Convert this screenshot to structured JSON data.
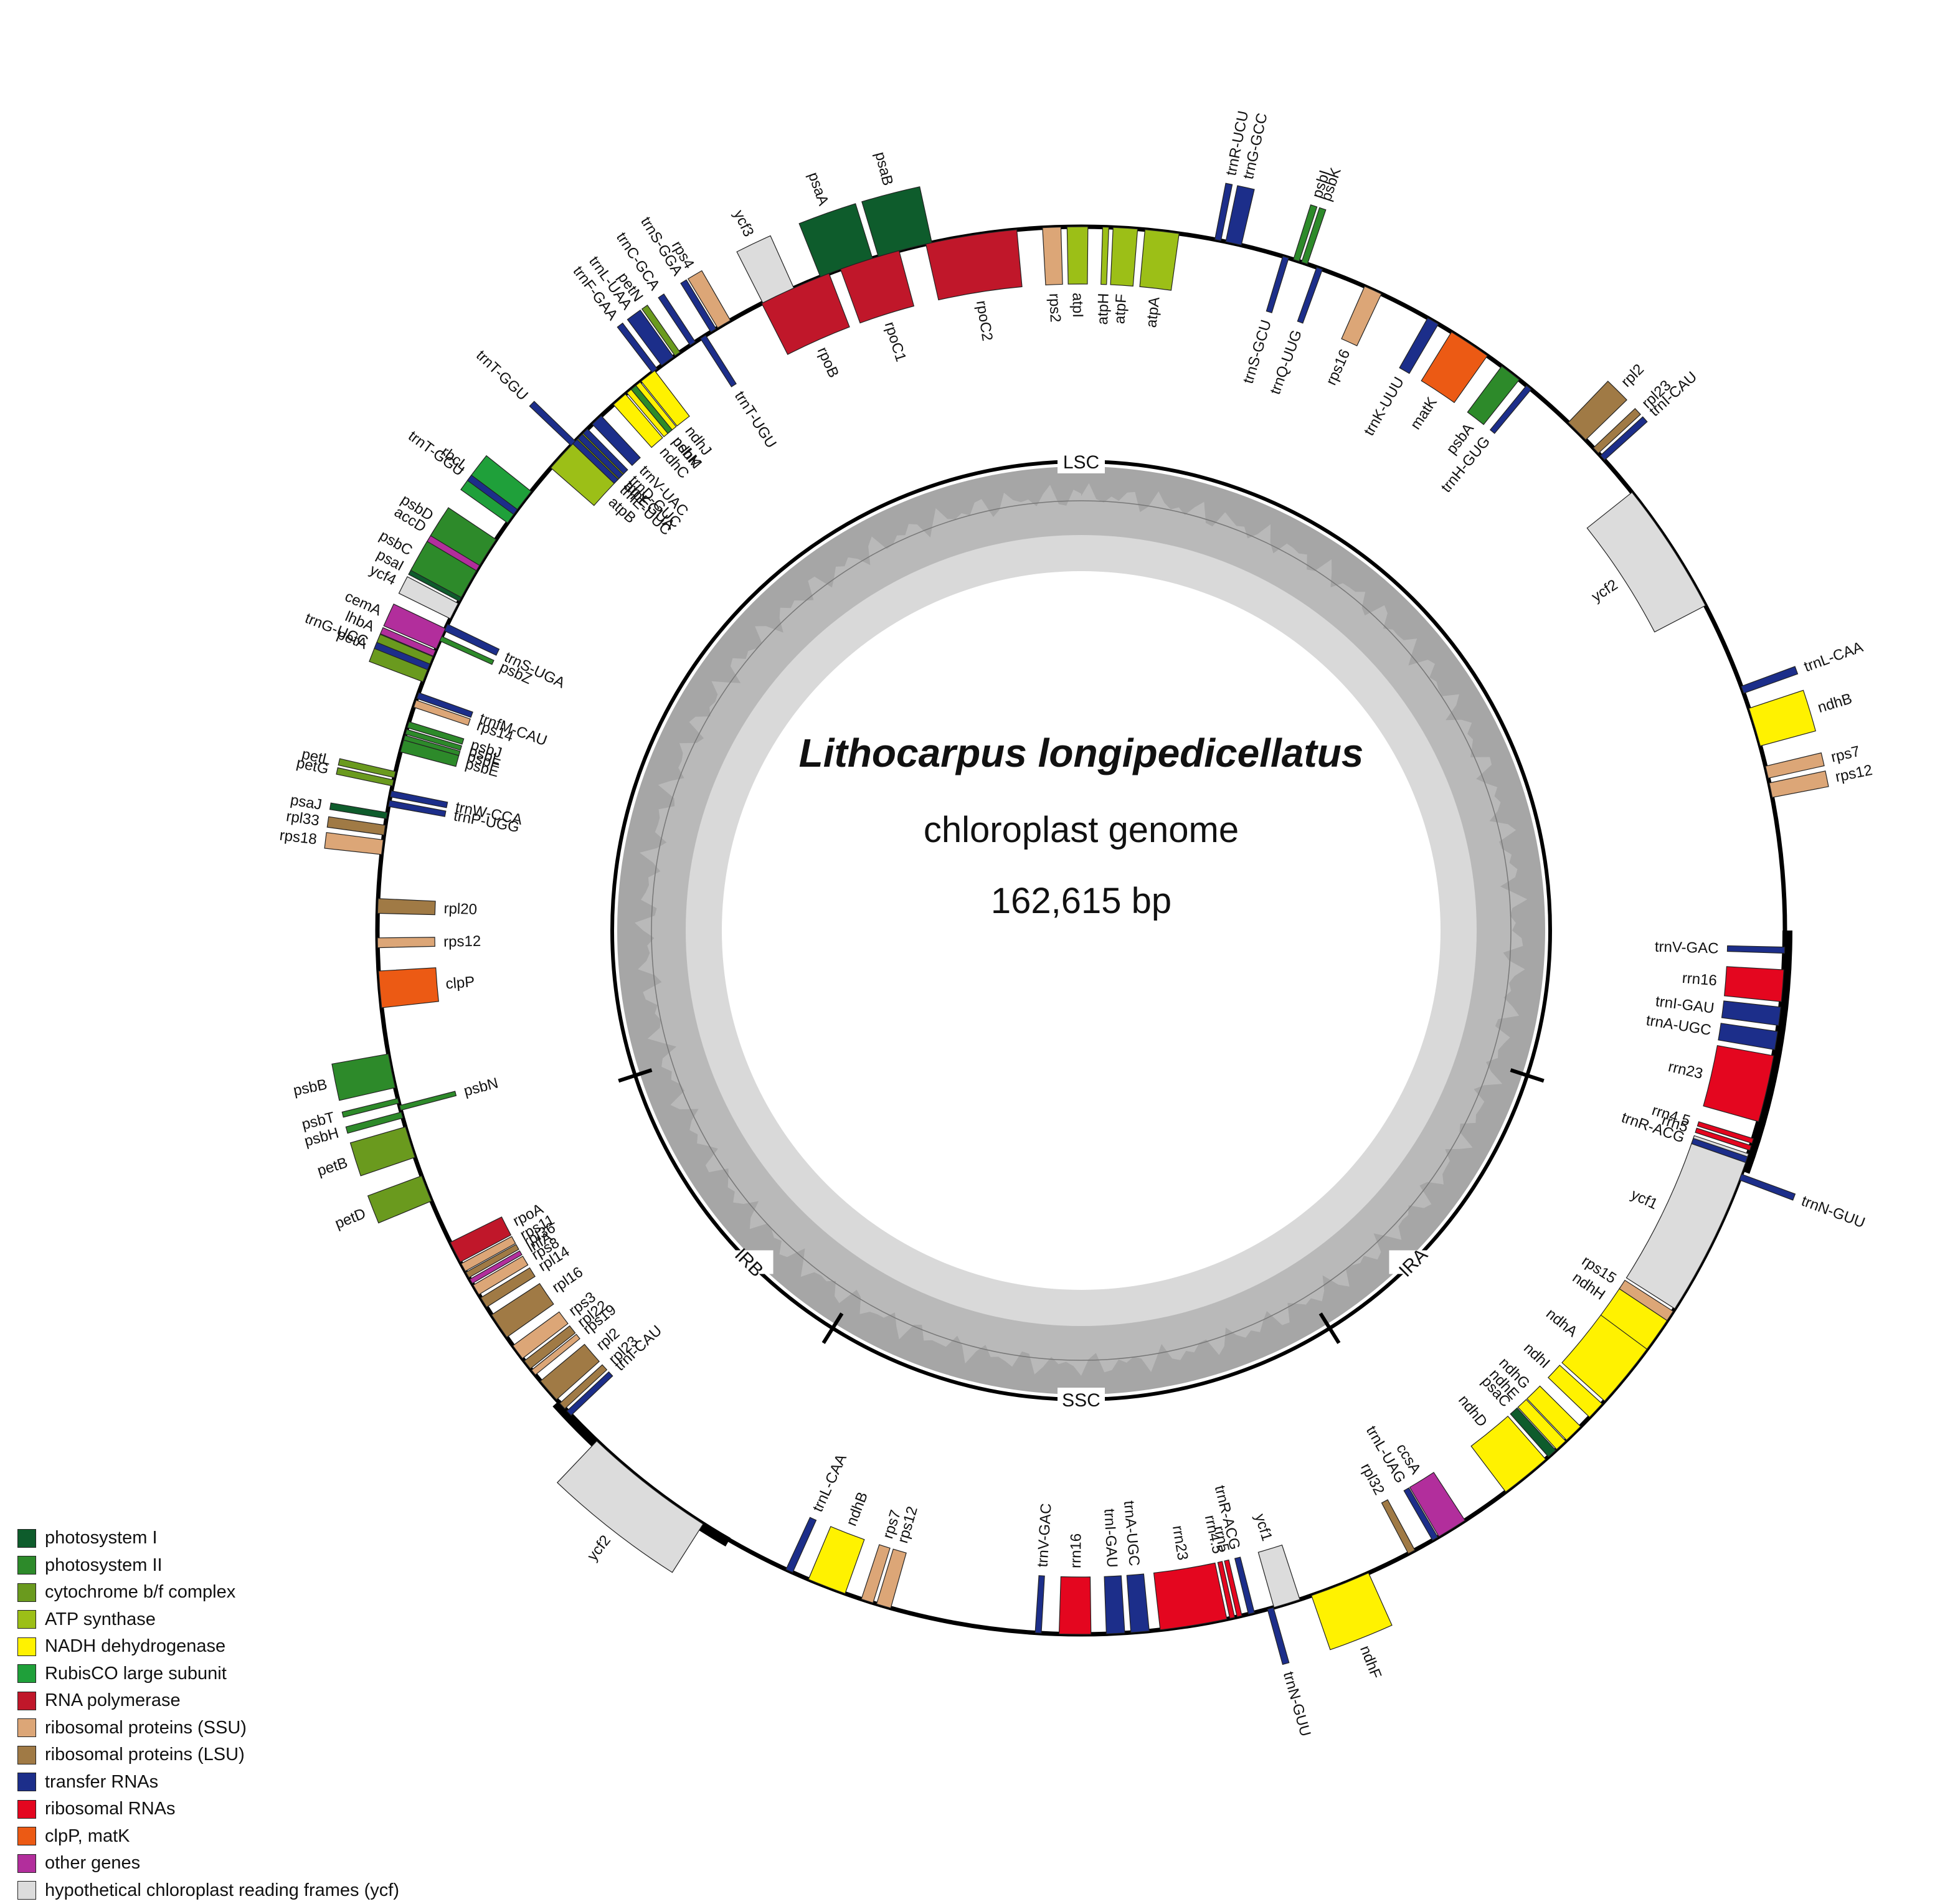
{
  "title": {
    "species": "Lithocarpus longipedicellatus",
    "subtitle": "chloroplast genome",
    "size": "162,615 bp"
  },
  "regions": [
    "LSC",
    "IRA",
    "SSC",
    "IRB"
  ],
  "colors": {
    "psI": "#0e5c2c",
    "psII": "#2d8a2a",
    "cyt": "#6a9a1e",
    "atp": "#9cbf17",
    "ndh": "#fff200",
    "rbcL": "#1fa03a",
    "rpo": "#c0172a",
    "ssu": "#dca677",
    "lsu": "#a07a45",
    "trna": "#1c2e8a",
    "rrna": "#e4061f",
    "clp": "#ec5a14",
    "other": "#b22e9c",
    "ycf": "#dcdcdc",
    "gc_outer": "#a6a6a6",
    "gc_inner": "#d9d9d9"
  },
  "legend": [
    {
      "label": "photosystem I",
      "color": "#0e5c2c"
    },
    {
      "label": "photosystem II",
      "color": "#2d8a2a"
    },
    {
      "label": "cytochrome b/f complex",
      "color": "#6a9a1e"
    },
    {
      "label": "ATP synthase",
      "color": "#9cbf17"
    },
    {
      "label": "NADH dehydrogenase",
      "color": "#fff200"
    },
    {
      "label": "RubisCO large subunit",
      "color": "#1fa03a"
    },
    {
      "label": "RNA polymerase",
      "color": "#c0172a"
    },
    {
      "label": "ribosomal proteins (SSU)",
      "color": "#dca677"
    },
    {
      "label": "ribosomal proteins (LSU)",
      "color": "#a07a45"
    },
    {
      "label": "transfer RNAs",
      "color": "#1c2e8a"
    },
    {
      "label": "ribosomal RNAs",
      "color": "#e4061f"
    },
    {
      "label": "clpP, matK",
      "color": "#ec5a14"
    },
    {
      "label": "other genes",
      "color": "#b22e9c"
    },
    {
      "label": "hypothetical chloroplast reading frames (ycf)",
      "color": "#dcdcdc"
    }
  ],
  "genes": [
    {
      "name": "psaA",
      "angle": -19.5,
      "span": 4.5,
      "side": "out",
      "type": "psI"
    },
    {
      "name": "psaB",
      "angle": -14.5,
      "span": 4.5,
      "side": "out",
      "type": "psI"
    },
    {
      "name": "ycf3",
      "angle": -25.5,
      "span": 2.8,
      "side": "out",
      "type": "ycf"
    },
    {
      "name": "rps4",
      "angle": -30.5,
      "span": 1.2,
      "side": "out",
      "type": "ssu"
    },
    {
      "name": "trnT-UGU",
      "angle": -32.5,
      "span": 0.5,
      "side": "in",
      "type": "trna"
    },
    {
      "name": "trnS-GGA",
      "angle": -31.5,
      "span": 0.5,
      "side": "out",
      "type": "trna"
    },
    {
      "name": "trnL-UAA",
      "angle": -36.0,
      "span": 1.2,
      "side": "out",
      "type": "trna"
    },
    {
      "name": "trnF-GAA",
      "angle": -37.3,
      "span": 0.5,
      "side": "out",
      "type": "trna"
    },
    {
      "name": "ndhJ",
      "angle": -38.0,
      "span": 1.4,
      "side": "in",
      "type": "ndh"
    },
    {
      "name": "ndhK",
      "angle": -39.5,
      "span": 1.4,
      "side": "in",
      "type": "ndh"
    },
    {
      "name": "ndhC",
      "angle": -41.0,
      "span": 1.3,
      "side": "in",
      "type": "ndh"
    },
    {
      "name": "trnV-UAC",
      "angle": -43.5,
      "span": 1.0,
      "side": "in",
      "type": "trna"
    },
    {
      "name": "atpE",
      "angle": -45.5,
      "span": 1.0,
      "side": "in",
      "type": "atp"
    },
    {
      "name": "atpB",
      "angle": -47.5,
      "span": 2.8,
      "side": "in",
      "type": "atp"
    },
    {
      "name": "trnT-GGU",
      "angle": -46.2,
      "span": 0.5,
      "side": "out",
      "type": "trna"
    },
    {
      "name": "rbcL",
      "angle": -53.0,
      "span": 3.2,
      "side": "out",
      "type": "rbcL"
    },
    {
      "name": "accD",
      "angle": -58.5,
      "span": 3.0,
      "side": "out",
      "type": "other"
    },
    {
      "name": "psaI",
      "angle": -61.8,
      "span": 0.6,
      "side": "out",
      "type": "psI"
    },
    {
      "name": "ycf4",
      "angle": -63.0,
      "span": 1.4,
      "side": "out",
      "type": "ycf"
    },
    {
      "name": "cemA",
      "angle": -65.5,
      "span": 1.8,
      "side": "out",
      "type": "other"
    },
    {
      "name": "petA",
      "angle": -68.2,
      "span": 2.2,
      "side": "out",
      "type": "cyt"
    },
    {
      "name": "psbJ",
      "angle": -73.0,
      "span": 0.5,
      "side": "in",
      "type": "psII"
    },
    {
      "name": "psbL",
      "angle": -73.6,
      "span": 0.4,
      "side": "in",
      "type": "psII"
    },
    {
      "name": "psbF",
      "angle": -74.1,
      "span": 0.4,
      "side": "in",
      "type": "psII"
    },
    {
      "name": "psbE",
      "angle": -74.8,
      "span": 1.0,
      "side": "in",
      "type": "psII"
    },
    {
      "name": "petL",
      "angle": -77.2,
      "span": 0.5,
      "side": "out",
      "type": "cyt"
    },
    {
      "name": "petG",
      "angle": -77.9,
      "span": 0.5,
      "side": "out",
      "type": "cyt"
    },
    {
      "name": "trnW-CCA",
      "angle": -78.8,
      "span": 0.5,
      "side": "in",
      "type": "trna"
    },
    {
      "name": "trnP-UGG",
      "angle": -79.6,
      "span": 0.5,
      "side": "in",
      "type": "trna"
    },
    {
      "name": "psaJ",
      "angle": -80.6,
      "span": 0.5,
      "side": "out",
      "type": "psI"
    },
    {
      "name": "rpl33",
      "angle": -81.8,
      "span": 0.8,
      "side": "out",
      "type": "lsu"
    },
    {
      "name": "rps18",
      "angle": -83.2,
      "span": 1.2,
      "side": "out",
      "type": "ssu"
    },
    {
      "name": "rpl20",
      "angle": -88.0,
      "span": 1.2,
      "side": "in",
      "type": "lsu"
    },
    {
      "name": "rps12",
      "angle": -91.0,
      "span": 0.8,
      "side": "in",
      "type": "ssu"
    },
    {
      "name": "clpP",
      "angle": -94.8,
      "span": 3.0,
      "side": "in",
      "type": "clp"
    },
    {
      "name": "psbB",
      "angle": -101.5,
      "span": 2.8,
      "side": "out",
      "type": "psII"
    },
    {
      "name": "psbT",
      "angle": -104.0,
      "span": 0.4,
      "side": "out",
      "type": "psII"
    },
    {
      "name": "psbN",
      "angle": -104.6,
      "span": 0.4,
      "side": "in",
      "type": "psII"
    },
    {
      "name": "psbH",
      "angle": -105.2,
      "span": 0.5,
      "side": "out",
      "type": "psII"
    },
    {
      "name": "petB",
      "angle": -107.5,
      "span": 2.6,
      "side": "out",
      "type": "cyt"
    },
    {
      "name": "petD",
      "angle": -111.5,
      "span": 2.2,
      "side": "out",
      "type": "cyt"
    },
    {
      "name": "rpoA",
      "angle": -117.2,
      "span": 1.8,
      "side": "in",
      "type": "rpo"
    },
    {
      "name": "rps11",
      "angle": -118.6,
      "span": 0.7,
      "side": "in",
      "type": "ssu"
    },
    {
      "name": "rpl36",
      "angle": -119.3,
      "span": 0.5,
      "side": "in",
      "type": "lsu"
    },
    {
      "name": "infA",
      "angle": -119.9,
      "span": 0.4,
      "side": "in",
      "type": "other"
    },
    {
      "name": "rps8",
      "angle": -120.7,
      "span": 0.9,
      "side": "in",
      "type": "ssu"
    },
    {
      "name": "rpl14",
      "angle": -121.9,
      "span": 0.9,
      "side": "in",
      "type": "lsu"
    },
    {
      "name": "rpl16",
      "angle": -124.2,
      "span": 2.2,
      "side": "in",
      "type": "lsu"
    },
    {
      "name": "rps3",
      "angle": -126.8,
      "span": 1.3,
      "side": "in",
      "type": "ssu"
    },
    {
      "name": "rpl22",
      "angle": -128.1,
      "span": 0.8,
      "side": "in",
      "type": "lsu"
    },
    {
      "name": "rps19",
      "angle": -128.9,
      "span": 0.5,
      "side": "in",
      "type": "ssu"
    },
    {
      "name": "rpl2",
      "angle": -130.8,
      "span": 2.0,
      "side": "in",
      "type": "lsu"
    },
    {
      "name": "rpl23",
      "angle": -132.5,
      "span": 0.6,
      "side": "in",
      "type": "lsu"
    },
    {
      "name": "trnI-CAU",
      "angle": -133.3,
      "span": 0.5,
      "side": "in",
      "type": "trna"
    },
    {
      "name": "ycf2",
      "angle": -142.0,
      "span": 11.0,
      "side": "out",
      "type": "ycf"
    },
    {
      "name": "trnL-CAA",
      "angle": -155.5,
      "span": 0.6,
      "side": "in",
      "type": "trna"
    },
    {
      "name": "ndhB",
      "angle": -158.8,
      "span": 3.2,
      "side": "in",
      "type": "ndh"
    },
    {
      "name": "rps7",
      "angle": -162.3,
      "span": 1.0,
      "side": "in",
      "type": "ssu"
    },
    {
      "name": "rps12",
      "angle": -163.7,
      "span": 1.2,
      "side": "in",
      "type": "ssu"
    },
    {
      "name": "trnV-GAC",
      "angle": -176.5,
      "span": 0.5,
      "side": "in",
      "type": "trna"
    },
    {
      "name": "rrn16",
      "angle": -179.5,
      "span": 2.6,
      "side": "in",
      "type": "rrna"
    },
    {
      "name": "trnI-GAU",
      "angle": 177.2,
      "span": 1.5,
      "side": "in",
      "type": "trna"
    },
    {
      "name": "trnA-UGC",
      "angle": 175.2,
      "span": 1.5,
      "side": "in",
      "type": "trna"
    },
    {
      "name": "rrn23",
      "angle": 170.8,
      "span": 5.5,
      "side": "in",
      "type": "rrna"
    },
    {
      "name": "rrn4.5",
      "angle": 167.6,
      "span": 0.4,
      "side": "in",
      "type": "rrna"
    },
    {
      "name": "rrn5",
      "angle": 167.0,
      "span": 0.4,
      "side": "in",
      "type": "rrna"
    },
    {
      "name": "trnR-ACG",
      "angle": 166.0,
      "span": 0.5,
      "side": "in",
      "type": "trna"
    },
    {
      "name": "trnN-GUU",
      "angle": 164.4,
      "span": 0.5,
      "side": "out",
      "type": "trna"
    },
    {
      "name": "ycf1",
      "angle": 163.0,
      "span": 2.2,
      "side": "in",
      "type": "ycf"
    },
    {
      "name": "ndhF",
      "angle": 158.4,
      "span": 5.0,
      "side": "out",
      "type": "ndh"
    },
    {
      "name": "rpl32",
      "angle": 152.0,
      "span": 0.6,
      "side": "in",
      "type": "lsu"
    },
    {
      "name": "trnL-UAG",
      "angle": 149.8,
      "span": 0.5,
      "side": "in",
      "type": "trna"
    },
    {
      "name": "ccsA",
      "angle": 148.2,
      "span": 2.5,
      "side": "in",
      "type": "other"
    },
    {
      "name": "ndhD",
      "angle": 140.8,
      "span": 4.2,
      "side": "in",
      "type": "ndh"
    },
    {
      "name": "psaC",
      "angle": 138.0,
      "span": 0.8,
      "side": "in",
      "type": "psI"
    },
    {
      "name": "ndhE",
      "angle": 137.0,
      "span": 1.0,
      "side": "in",
      "type": "ndh"
    },
    {
      "name": "ndhG",
      "angle": 135.6,
      "span": 1.6,
      "side": "in",
      "type": "ndh"
    },
    {
      "name": "ndhI",
      "angle": 133.0,
      "span": 1.5,
      "side": "in",
      "type": "ndh"
    },
    {
      "name": "ndhA",
      "angle": 129.2,
      "span": 5.5,
      "side": "in",
      "type": "ndh"
    },
    {
      "name": "ndhH",
      "angle": 125.0,
      "span": 3.0,
      "side": "in",
      "type": "ndh"
    },
    {
      "name": "rps15",
      "angle": 123.2,
      "span": 0.9,
      "side": "in",
      "type": "ssu"
    },
    {
      "name": "ycf1",
      "angle": 115.5,
      "span": 14.0,
      "side": "in",
      "type": "ycf"
    },
    {
      "name": "trnN-GUU",
      "angle": 110.5,
      "span": 0.5,
      "side": "out",
      "type": "trna"
    },
    {
      "name": "trnR-ACG",
      "angle": 109.0,
      "span": 0.5,
      "side": "in",
      "type": "trna"
    },
    {
      "name": "rrn5",
      "angle": 108.0,
      "span": 0.4,
      "side": "in",
      "type": "rrna"
    },
    {
      "name": "rrn4.5",
      "angle": 107.4,
      "span": 0.4,
      "side": "in",
      "type": "rrna"
    },
    {
      "name": "rrn23",
      "angle": 103.0,
      "span": 5.5,
      "side": "in",
      "type": "rrna"
    },
    {
      "name": "trnA-UGC",
      "angle": 99.0,
      "span": 1.5,
      "side": "in",
      "type": "trna"
    },
    {
      "name": "trnI-GAU",
      "angle": 97.0,
      "span": 1.5,
      "side": "in",
      "type": "trna"
    },
    {
      "name": "rrn16",
      "angle": 94.5,
      "span": 2.6,
      "side": "in",
      "type": "rrna"
    },
    {
      "name": "trnV-GAC",
      "angle": 91.6,
      "span": 0.5,
      "side": "in",
      "type": "trna"
    },
    {
      "name": "rps12",
      "angle": 78.5,
      "span": 1.2,
      "side": "out",
      "type": "ssu"
    },
    {
      "name": "rps7",
      "angle": 77.0,
      "span": 1.0,
      "side": "out",
      "type": "ssu"
    },
    {
      "name": "ndhB",
      "angle": 73.2,
      "span": 3.2,
      "side": "out",
      "type": "ndh"
    },
    {
      "name": "trnL-CAA",
      "angle": 70.0,
      "span": 0.6,
      "side": "out",
      "type": "trna"
    },
    {
      "name": "ycf2",
      "angle": 57.0,
      "span": 11.0,
      "side": "in",
      "type": "ycf"
    },
    {
      "name": "trnI-CAU",
      "angle": 47.8,
      "span": 0.5,
      "side": "out",
      "type": "trna"
    },
    {
      "name": "rpl23",
      "angle": 47.0,
      "span": 0.6,
      "side": "out",
      "type": "lsu"
    },
    {
      "name": "rpl2",
      "angle": 44.8,
      "span": 2.0,
      "side": "out",
      "type": "lsu"
    },
    {
      "name": "trnH-GUG",
      "angle": 39.5,
      "span": 0.5,
      "side": "in",
      "type": "trna"
    },
    {
      "name": "psbA",
      "angle": 37.6,
      "span": 1.8,
      "side": "in",
      "type": "psII"
    },
    {
      "name": "matK",
      "angle": 33.5,
      "span": 3.5,
      "side": "in",
      "type": "clp"
    },
    {
      "name": "trnK-UUU",
      "angle": 30.0,
      "span": 1.0,
      "side": "in",
      "type": "trna"
    },
    {
      "name": "rps16",
      "angle": 24.5,
      "span": 1.5,
      "side": "in",
      "type": "ssu"
    },
    {
      "name": "trnQ-UUG",
      "angle": 19.8,
      "span": 0.5,
      "side": "in",
      "type": "trna"
    },
    {
      "name": "psbK",
      "angle": 18.5,
      "span": 0.5,
      "side": "out",
      "type": "psII"
    },
    {
      "name": "psbI",
      "angle": 17.8,
      "span": 0.5,
      "side": "out",
      "type": "psII"
    },
    {
      "name": "trnS-GCU",
      "angle": 16.9,
      "span": 0.5,
      "side": "in",
      "type": "trna"
    },
    {
      "name": "trnG-GCC",
      "angle": 12.5,
      "span": 1.3,
      "side": "out",
      "type": "trna"
    },
    {
      "name": "trnR-UCU",
      "angle": 11.2,
      "span": 0.5,
      "side": "out",
      "type": "trna"
    },
    {
      "name": "atpA",
      "angle": 6.6,
      "span": 2.8,
      "side": "in",
      "type": "atp"
    },
    {
      "name": "atpF",
      "angle": 3.6,
      "span": 2.0,
      "side": "in",
      "type": "atp"
    },
    {
      "name": "atpH",
      "angle": 2.0,
      "span": 0.5,
      "side": "in",
      "type": "atp"
    },
    {
      "name": "atpI",
      "angle": -0.3,
      "span": 1.7,
      "side": "in",
      "type": "atp"
    },
    {
      "name": "rps2",
      "angle": -2.4,
      "span": 1.5,
      "side": "in",
      "type": "ssu"
    },
    {
      "name": "rpoC2",
      "angle": -9.0,
      "span": 7.5,
      "side": "in",
      "type": "rpo"
    },
    {
      "name": "rpoC1",
      "angle": -17.5,
      "span": 5.0,
      "side": "in",
      "type": "rpo"
    },
    {
      "name": "rpoB",
      "angle": -24.0,
      "span": 6.0,
      "side": "in",
      "type": "rpo"
    },
    {
      "name": "trnC-GCA",
      "angle": -33.5,
      "span": 0.5,
      "side": "out",
      "type": "trna"
    },
    {
      "name": "petN",
      "angle": -35.0,
      "span": 0.5,
      "side": "out",
      "type": "cyt"
    },
    {
      "name": "psbM",
      "angle": -39.5,
      "span": 0.5,
      "side": "in",
      "type": "psII"
    },
    {
      "name": "trnD-GUC",
      "angle": -44.8,
      "span": 0.5,
      "side": "in",
      "type": "trna"
    },
    {
      "name": "trnY-GUA",
      "angle": -45.4,
      "span": 0.5,
      "side": "in",
      "type": "trna"
    },
    {
      "name": "trnE-UUC",
      "angle": -46.0,
      "span": 0.5,
      "side": "in",
      "type": "trna"
    },
    {
      "name": "trnT-GGU",
      "angle": -53.5,
      "span": 0.5,
      "side": "out",
      "type": "trna"
    },
    {
      "name": "psbD",
      "angle": -57.5,
      "span": 2.5,
      "side": "out",
      "type": "psII"
    },
    {
      "name": "psbC",
      "angle": -60.5,
      "span": 2.5,
      "side": "out",
      "type": "psII"
    },
    {
      "name": "trnS-UGA",
      "angle": -64.5,
      "span": 0.6,
      "side": "in",
      "type": "trna"
    },
    {
      "name": "psbZ",
      "angle": -65.5,
      "span": 0.4,
      "side": "in",
      "type": "psII"
    },
    {
      "name": "lhbA",
      "angle": -66.8,
      "span": 0.5,
      "side": "out",
      "type": "other"
    },
    {
      "name": "trnG-UCC",
      "angle": -68.0,
      "span": 0.5,
      "side": "out",
      "type": "trna"
    },
    {
      "name": "trnfM-CAU",
      "angle": -70.5,
      "span": 0.5,
      "side": "in",
      "type": "trna"
    },
    {
      "name": "rps14",
      "angle": -71.2,
      "span": 0.6,
      "side": "in",
      "type": "ssu"
    }
  ],
  "gc_profile": {
    "samples": 360,
    "baseline_fraction": 0.38,
    "note": ""
  }
}
